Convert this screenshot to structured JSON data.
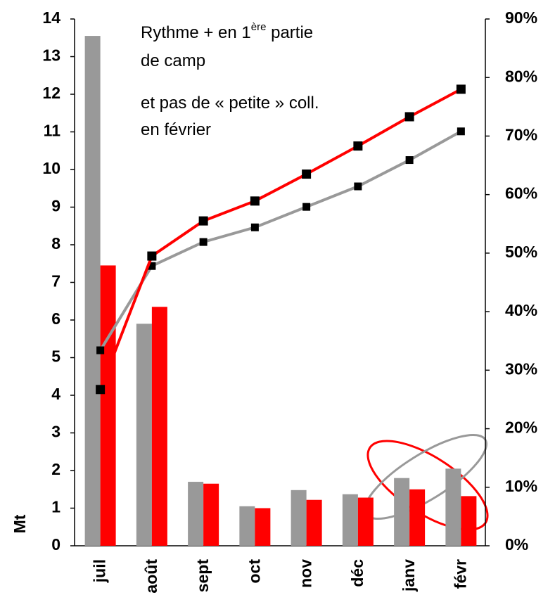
{
  "chart_data": {
    "type": "bar_line",
    "ylabel": "Mt",
    "annotations": [
      [
        "Rythme + en 1",
        "ère",
        " partie"
      ],
      [
        "de camp"
      ],
      [
        "et pas de « petite » coll."
      ],
      [
        "en février"
      ]
    ],
    "categories": [
      "juil",
      "août",
      "sept",
      "oct",
      "nov",
      "déc",
      "janv",
      "févr"
    ],
    "series": [
      {
        "type": "bar",
        "color": "#999999",
        "values": [
          13.55,
          5.9,
          1.7,
          1.05,
          1.48,
          1.37,
          1.8,
          2.05
        ]
      },
      {
        "type": "bar",
        "color": "#ff0000",
        "values": [
          7.45,
          6.35,
          1.65,
          1.0,
          1.22,
          1.28,
          1.5,
          1.32
        ]
      },
      {
        "type": "line",
        "axis": "y2",
        "color": "#999999",
        "values": [
          33.4,
          47.8,
          51.9,
          54.4,
          57.9,
          61.4,
          65.9,
          70.8
        ]
      },
      {
        "type": "line",
        "axis": "y2",
        "color": "#ff0000",
        "values": [
          26.7,
          49.5,
          55.5,
          58.9,
          63.5,
          68.3,
          73.3,
          78.0
        ]
      }
    ],
    "ylim": [
      0,
      14
    ],
    "yticks": [
      0,
      1,
      2,
      3,
      4,
      5,
      6,
      7,
      8,
      9,
      10,
      11,
      12,
      13,
      14
    ],
    "y2lim": [
      0,
      90
    ],
    "y2ticks": [
      {
        "value": 0,
        "label": "0%"
      },
      {
        "value": 10,
        "label": "10%"
      },
      {
        "value": 20,
        "label": "20%"
      },
      {
        "value": 30,
        "label": "30%"
      },
      {
        "value": 40,
        "label": "40%"
      },
      {
        "value": 50,
        "label": "50%"
      },
      {
        "value": 60,
        "label": "60%"
      },
      {
        "value": 70,
        "label": "70%"
      },
      {
        "value": 80,
        "label": "80%"
      },
      {
        "value": 90,
        "label": "90%"
      }
    ],
    "grid": false
  }
}
